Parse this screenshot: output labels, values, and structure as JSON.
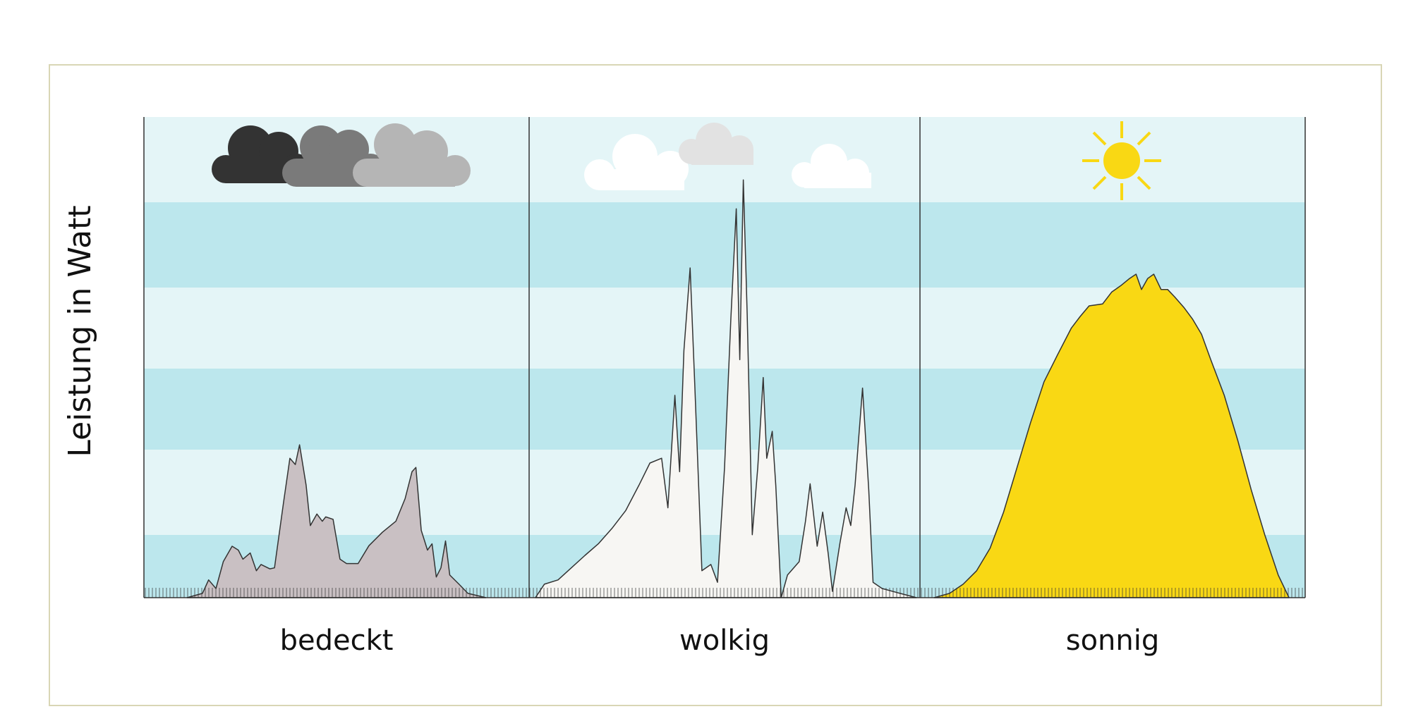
{
  "chart_data": {
    "type": "area",
    "ylabel": "Leistung in Watt",
    "xlim": [
      0,
      100
    ],
    "ylim": [
      0,
      100
    ],
    "series": [
      {
        "name": "bedeckt",
        "color": "#c9c0c3",
        "x": [
          11.2,
          15.2,
          16.8,
          18.7,
          20.6,
          22.9,
          24.5,
          25.7,
          27.6,
          29.2,
          30.4,
          32.7,
          33.9,
          36.2,
          37.9,
          39.3,
          40.4,
          42.1,
          43.2,
          44.9,
          46.3,
          47.2,
          49.1,
          50.9,
          52.6,
          55.6,
          58.4,
          61.9,
          65.4,
          67.8,
          69.6,
          70.6,
          72.0,
          73.6,
          74.8,
          75.9,
          77.1,
          78.3,
          79.4,
          81.8,
          84.1,
          88.8
        ],
        "values": [
          0,
          0.9,
          3.7,
          1.9,
          7.5,
          10.7,
          9.9,
          8.0,
          9.3,
          5.6,
          6.9,
          6.0,
          6.2,
          19.6,
          29.0,
          27.7,
          31.8,
          23.4,
          15.0,
          17.4,
          15.9,
          16.8,
          16.3,
          8.0,
          7.1,
          7.1,
          10.8,
          13.6,
          15.9,
          20.6,
          26.2,
          27.1,
          14.0,
          9.9,
          11.2,
          4.3,
          6.2,
          11.8,
          4.7,
          2.8,
          0.9,
          0
        ]
      },
      {
        "name": "wolkig",
        "color": "#f7f6f3",
        "x": [
          1.6,
          3.9,
          7.4,
          10.8,
          14.3,
          17.7,
          21.2,
          24.7,
          28.1,
          30.9,
          33.9,
          35.5,
          37.3,
          38.5,
          39.6,
          41.2,
          42.4,
          44.2,
          46.5,
          48.2,
          50.0,
          51.6,
          53.0,
          53.9,
          54.8,
          55.8,
          57.1,
          58.5,
          59.9,
          60.8,
          62.2,
          63.1,
          64.5,
          66.1,
          69.1,
          70.7,
          71.9,
          73.7,
          75.1,
          76.5,
          77.6,
          79.5,
          81.1,
          82.3,
          83.4,
          85.3,
          86.9,
          88.0,
          90.3,
          94.9,
          99.1
        ],
        "values": [
          0,
          2.8,
          3.7,
          6.2,
          8.8,
          11.2,
          14.4,
          18.1,
          23.4,
          28.0,
          29.0,
          18.7,
          42.1,
          26.2,
          51.4,
          68.6,
          43.9,
          5.6,
          6.9,
          3.2,
          27.1,
          57.9,
          80.9,
          49.5,
          86.9,
          58.9,
          13.1,
          27.1,
          45.8,
          29.0,
          34.6,
          23.4,
          0,
          4.7,
          7.5,
          15.9,
          23.7,
          10.7,
          17.8,
          9.3,
          1.3,
          11.2,
          18.7,
          15.0,
          23.4,
          43.6,
          22.4,
          3.2,
          1.9,
          0.9,
          0
        ]
      },
      {
        "name": "sonnig",
        "color": "#f9d814",
        "x": [
          3.7,
          7.7,
          11.2,
          14.7,
          18.2,
          21.7,
          25.2,
          28.7,
          32.2,
          35.7,
          39.3,
          41.6,
          43.9,
          47.4,
          49.8,
          52.1,
          54.4,
          56.1,
          57.5,
          59.1,
          60.7,
          62.6,
          64.3,
          66.1,
          68.5,
          70.8,
          73.1,
          75.5,
          79.0,
          82.5,
          86.0,
          89.5,
          93.0,
          95.8
        ],
        "values": [
          0,
          0.9,
          2.8,
          5.6,
          10.3,
          17.8,
          27.1,
          36.4,
          44.9,
          50.5,
          56.1,
          58.5,
          60.7,
          61.1,
          63.6,
          64.9,
          66.4,
          67.3,
          64.1,
          66.4,
          67.3,
          64.1,
          64.1,
          62.6,
          60.4,
          57.9,
          54.8,
          49.5,
          42.1,
          32.7,
          22.4,
          13.1,
          4.7,
          0
        ]
      }
    ]
  }
}
